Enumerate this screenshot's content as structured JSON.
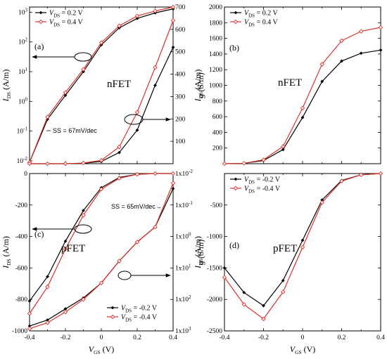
{
  "chart_data": [
    {
      "id": "a",
      "type": "line",
      "panel_label": "(a)",
      "device_label": "nFET",
      "annotation": "SS = 67mV/dec",
      "xlim": [
        -0.4,
        0.4
      ],
      "left_axis": {
        "label": "I",
        "label_sub": "DS",
        "unit": " (A/m)",
        "scale": "log",
        "ylim": [
          0.008,
          1500
        ],
        "ticks": [
          {
            "v": 0.01,
            "b": "10",
            "e": "-2"
          },
          {
            "v": 0.1,
            "b": "10",
            "e": "-1"
          },
          {
            "v": 1,
            "b": "10",
            "e": "0"
          },
          {
            "v": 10,
            "b": "10",
            "e": "1"
          },
          {
            "v": 100,
            "b": "10",
            "e": "2"
          },
          {
            "v": 1000,
            "b": "10",
            "e": "3"
          }
        ]
      },
      "right_axis": {
        "label": "I",
        "label_sub": "DS",
        "unit": " (A/m)",
        "scale": "linear",
        "ylim": [
          0,
          700
        ],
        "ticks": [
          "100",
          "200",
          "300",
          "400",
          "500",
          "600",
          "700"
        ]
      },
      "legend": [
        {
          "label": "V",
          "sub": "DS",
          "value": " = 0.2 V"
        },
        {
          "label": "V",
          "sub": "DS",
          "value": " = 0.4 V"
        }
      ],
      "series": [
        {
          "axis": "left",
          "color": "#000000",
          "x": [
            -0.4,
            -0.3,
            -0.2,
            -0.1,
            0,
            0.1,
            0.2,
            0.3,
            0.4
          ],
          "y": [
            0.009,
            0.25,
            1.6,
            10,
            80,
            300,
            620,
            950,
            1300
          ]
        },
        {
          "axis": "left",
          "color": "#d9332b",
          "x": [
            -0.4,
            -0.3,
            -0.2,
            -0.1,
            0,
            0.1,
            0.2,
            0.3,
            0.4
          ],
          "y": [
            0.009,
            0.3,
            2,
            12,
            95,
            350,
            750,
            1100,
            1500
          ]
        },
        {
          "axis": "right",
          "color": "#000000",
          "x": [
            -0.4,
            -0.3,
            -0.2,
            -0.1,
            0,
            0.1,
            0.2,
            0.3,
            0.4
          ],
          "y": [
            0,
            0,
            0,
            2,
            10,
            50,
            150,
            350,
            520
          ]
        },
        {
          "axis": "right",
          "color": "#d9332b",
          "x": [
            -0.4,
            -0.3,
            -0.2,
            -0.1,
            0,
            0.1,
            0.2,
            0.3,
            0.4
          ],
          "y": [
            0,
            0,
            0,
            3,
            15,
            75,
            230,
            430,
            640
          ]
        }
      ]
    },
    {
      "id": "b",
      "type": "line",
      "panel_label": "(b)",
      "device_label": "nFET",
      "xlim": [
        -0.4,
        0.4
      ],
      "left_axis": {
        "label": "g",
        "label_sub": "",
        "unit": " (S/m)",
        "scale": "linear",
        "ylim": [
          0,
          2000
        ],
        "ticks": [
          "200",
          "400",
          "600",
          "800",
          "1000",
          "1200",
          "1400",
          "1600",
          "1800",
          "2000"
        ]
      },
      "legend": [
        {
          "label": "V",
          "sub": "DS",
          "value": " = 0.2 V"
        },
        {
          "label": "V",
          "sub": "DS",
          "value": " = 0.4 V"
        }
      ],
      "series": [
        {
          "axis": "left",
          "color": "#000000",
          "x": [
            -0.4,
            -0.3,
            -0.2,
            -0.1,
            0,
            0.1,
            0.2,
            0.3,
            0.4
          ],
          "y": [
            0,
            5,
            40,
            180,
            590,
            1050,
            1310,
            1410,
            1450
          ]
        },
        {
          "axis": "left",
          "color": "#d9332b",
          "x": [
            -0.4,
            -0.3,
            -0.2,
            -0.1,
            0,
            0.1,
            0.2,
            0.3,
            0.4
          ],
          "y": [
            0,
            5,
            50,
            220,
            710,
            1270,
            1570,
            1690,
            1740
          ]
        }
      ]
    },
    {
      "id": "c",
      "type": "line",
      "panel_label": "(c)",
      "device_label": "pFET",
      "annotation": "SS = 65mV/dec→",
      "xlabel": "V",
      "xlabel_sub": "GS",
      "xunit": " (V)",
      "xlim": [
        -0.4,
        0.4
      ],
      "xticks": [
        "-0.4",
        "-0.2",
        "0",
        "0.2",
        "0.4"
      ],
      "left_axis": {
        "label": "I",
        "label_sub": "DS",
        "unit": " (A/m)",
        "scale": "linear",
        "ylim": [
          -1000,
          0
        ],
        "ticks": [
          "-1000",
          "-800",
          "-600",
          "-400",
          "-200",
          "0"
        ]
      },
      "right_axis": {
        "label": "I",
        "label_sub": "DS",
        "unit": " (A/m)",
        "scale": "log",
        "reversed": true,
        "ylim": [
          0.01,
          1000
        ],
        "ticks": [
          {
            "v": 0.01,
            "b": "1x10",
            "e": "-2"
          },
          {
            "v": 0.1,
            "b": "1x10",
            "e": "-1"
          },
          {
            "v": 1,
            "b": "1x10",
            "e": "0"
          },
          {
            "v": 10,
            "b": "1x10",
            "e": "1"
          },
          {
            "v": 100,
            "b": "1x10",
            "e": "2"
          },
          {
            "v": 1000,
            "b": "1x10",
            "e": "3"
          }
        ]
      },
      "legend": [
        {
          "label": "V",
          "sub": "DS",
          "value": " = -0.2 V"
        },
        {
          "label": "V",
          "sub": "DS",
          "value": " = -0.4 V"
        }
      ],
      "series": [
        {
          "axis": "left",
          "color": "#000000",
          "x": [
            -0.4,
            -0.3,
            -0.2,
            -0.1,
            0,
            0.1,
            0.2,
            0.3,
            0.4
          ],
          "y": [
            -810,
            -655,
            -430,
            -235,
            -90,
            -25,
            -5,
            0,
            0
          ]
        },
        {
          "axis": "left",
          "color": "#d9332b",
          "x": [
            -0.4,
            -0.3,
            -0.2,
            -0.1,
            0,
            0.1,
            0.2,
            0.3,
            0.4
          ],
          "y": [
            -890,
            -720,
            -480,
            -265,
            -100,
            -30,
            -5,
            0,
            0
          ]
        },
        {
          "axis": "right",
          "color": "#000000",
          "x": [
            -0.4,
            -0.3,
            -0.2,
            -0.1,
            0,
            0.1,
            0.2,
            0.3,
            0.4
          ],
          "y": [
            700,
            450,
            200,
            90,
            30,
            6,
            1.5,
            0.5,
            0.03
          ]
        },
        {
          "axis": "right",
          "color": "#d9332b",
          "x": [
            -0.4,
            -0.3,
            -0.2,
            -0.1,
            0,
            0.1,
            0.2,
            0.3,
            0.4
          ],
          "y": [
            850,
            550,
            250,
            100,
            30,
            6,
            1.5,
            0.5,
            0.02
          ]
        }
      ]
    },
    {
      "id": "d",
      "type": "line",
      "panel_label": "(d)",
      "device_label": "pFET",
      "xlabel": "V",
      "xlabel_sub": "GS",
      "xunit": " (V)",
      "xlim": [
        -0.4,
        0.4
      ],
      "xticks": [
        "-0.4",
        "-0.2",
        "0",
        "0.2",
        "0.4"
      ],
      "left_axis": {
        "label": "g",
        "label_sub": "",
        "unit": " (S/m)",
        "scale": "linear",
        "ylim": [
          -2500,
          0
        ],
        "ticks": [
          "-2500",
          "-2000",
          "-1500",
          "-1000",
          "-500"
        ]
      },
      "legend": [
        {
          "label": "V",
          "sub": "DS",
          "value": " = -0.2 V"
        },
        {
          "label": "V",
          "sub": "DS",
          "value": " = -0.4 V"
        }
      ],
      "series": [
        {
          "axis": "left",
          "color": "#000000",
          "x": [
            -0.4,
            -0.3,
            -0.2,
            -0.1,
            0,
            0.1,
            0.2,
            0.3,
            0.4
          ],
          "y": [
            -1500,
            -1890,
            -2100,
            -1700,
            -1060,
            -420,
            -110,
            -20,
            0
          ]
        },
        {
          "axis": "left",
          "color": "#d9332b",
          "x": [
            -0.4,
            -0.3,
            -0.2,
            -0.1,
            0,
            0.1,
            0.2,
            0.3,
            0.4
          ],
          "y": [
            -1650,
            -2080,
            -2310,
            -1880,
            -1170,
            -460,
            -120,
            -20,
            0
          ]
        }
      ]
    }
  ]
}
